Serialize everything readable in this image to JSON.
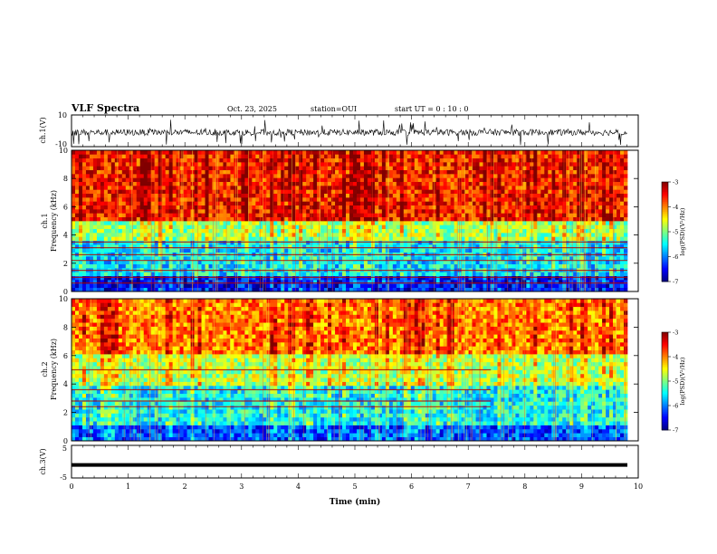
{
  "header": {
    "title": "VLF Spectra",
    "date": "Oct. 23, 2025",
    "station": "station=OUI",
    "start_ut": "start  UT =   0  : 10 : 0"
  },
  "chart_data": [
    {
      "type": "line",
      "name": "waveform-ch1",
      "ylabel": "ch.1(V)",
      "ylim": [
        -10,
        10
      ],
      "yticklabels": [
        "10",
        "-10"
      ],
      "xlim": [
        0,
        10
      ],
      "baseline": -1,
      "note_series": "dense waveform trace, roughly -4 to 2 V with spikes to +/-10 V"
    },
    {
      "type": "heatmap",
      "name": "spectrogram-ch1",
      "ylabel": "ch.1\nFrequency (kHz)",
      "ylabel_lines": [
        "ch.1",
        "Frequency (kHz)"
      ],
      "ylim": [
        0,
        10
      ],
      "yticks": [
        0,
        2,
        4,
        6,
        8,
        10
      ],
      "xlim": [
        0,
        10
      ],
      "colorbar": {
        "label": "log(PSD)(V²/Hz)",
        "ticks": [
          -3,
          -4,
          -5,
          -6,
          -7
        ],
        "range": [
          -7,
          -3
        ]
      },
      "bands": [
        {
          "fmin": 0,
          "fmax": 1.2,
          "level": -6.5
        },
        {
          "fmin": 1.2,
          "fmax": 3.6,
          "level": -5.6
        },
        {
          "fmin": 3.6,
          "fmax": 5.0,
          "level": -4.9
        },
        {
          "fmin": 5.0,
          "fmax": 10,
          "level": -3.6
        }
      ],
      "lines_khz": [
        0.6,
        1.0,
        1.5,
        2.2,
        2.6,
        3.1,
        3.5
      ]
    },
    {
      "type": "heatmap",
      "name": "spectrogram-ch2",
      "ylabel": "ch.2\nFrequency (kHz)",
      "ylabel_lines": [
        "ch.2",
        "Frequency (kHz)"
      ],
      "ylim": [
        0,
        10
      ],
      "yticks": [
        0,
        2,
        4,
        6,
        8,
        10
      ],
      "xlim": [
        0,
        10
      ],
      "colorbar": {
        "label": "log(PSD)(V²/Hz)",
        "ticks": [
          -3,
          -4,
          -5,
          -6,
          -7
        ],
        "range": [
          -7,
          -3
        ]
      },
      "bands": [
        {
          "fmin": 0,
          "fmax": 1.0,
          "level": -6.2
        },
        {
          "fmin": 1.0,
          "fmax": 3.8,
          "level": -5.5
        },
        {
          "fmin": 3.8,
          "fmax": 6.0,
          "level": -4.8
        },
        {
          "fmin": 6.0,
          "fmax": 10,
          "level": -4.0
        }
      ],
      "lines_khz": [
        2.4,
        2.8,
        3.6,
        5.0
      ],
      "lines_tmax_min": 7.4
    },
    {
      "type": "line",
      "name": "waveform-ch3",
      "ylabel": "ch.3(V)",
      "ylim": [
        -5,
        5
      ],
      "yticklabels": [
        "5",
        "-5"
      ],
      "xlim": [
        0,
        10
      ],
      "value": -1,
      "xlabel": "Time (min)",
      "xticks": [
        0,
        1,
        2,
        3,
        4,
        5,
        6,
        7,
        8,
        9,
        10
      ]
    }
  ]
}
